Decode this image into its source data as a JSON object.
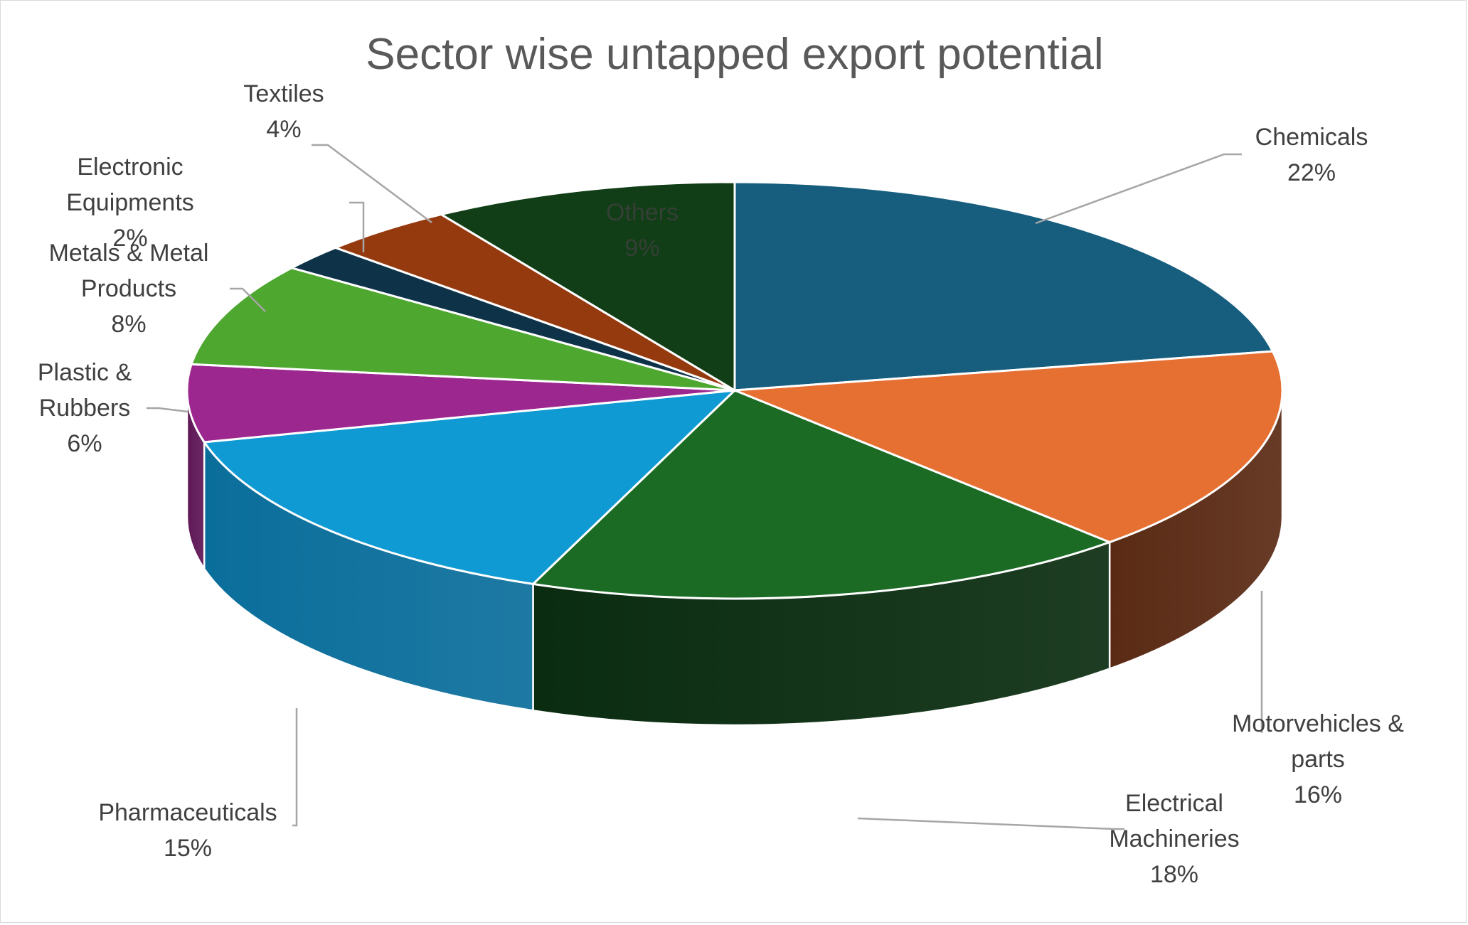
{
  "chart_data": {
    "type": "pie",
    "style": "3d-exploded-none",
    "title": "Sector wise untapped export potential",
    "slices": [
      {
        "name": "Chemicals",
        "label_lines": [
          "Chemicals"
        ],
        "value": 22,
        "pct_label": "22%",
        "color": "#175E7E",
        "side_color": "#0E3E55"
      },
      {
        "name": "Motorvehicles & parts",
        "label_lines": [
          "Motorvehicles &",
          "parts"
        ],
        "value": 16,
        "pct_label": "16%",
        "color": "#E67032",
        "side_color": "#5A2A14"
      },
      {
        "name": "Electrical Machineries",
        "label_lines": [
          "Electrical",
          "Machineries"
        ],
        "value": 18,
        "pct_label": "18%",
        "color": "#1B6B24",
        "side_color": "#0A2C10"
      },
      {
        "name": "Pharmaceuticals",
        "label_lines": [
          "Pharmaceuticals"
        ],
        "value": 15,
        "pct_label": "15%",
        "color": "#0F9AD3",
        "side_color": "#0A6E9B"
      },
      {
        "name": "Plastic & Rubbers",
        "label_lines": [
          "Plastic &",
          "Rubbers"
        ],
        "value": 6,
        "pct_label": "6%",
        "color": "#9C278F",
        "side_color": "#5E1756"
      },
      {
        "name": "Metals & Metal Products",
        "label_lines": [
          "Metals & Metal",
          "Products"
        ],
        "value": 8,
        "pct_label": "8%",
        "color": "#4EA72E",
        "side_color": "#2F6B1B"
      },
      {
        "name": "Electronic Equipments",
        "label_lines": [
          "Electronic",
          "Equipments"
        ],
        "value": 2,
        "pct_label": "2%",
        "color": "#0E3349",
        "side_color": "#081E2B"
      },
      {
        "name": "Textiles",
        "label_lines": [
          "Textiles"
        ],
        "value": 4,
        "pct_label": "4%",
        "color": "#953A0E",
        "side_color": "#5A2308"
      },
      {
        "name": "Others",
        "label_lines": [
          "Others"
        ],
        "value": 9,
        "pct_label": "9%",
        "color": "#113E16",
        "side_color": "#0A260D"
      }
    ],
    "legend": "none",
    "data_labels": "category and percentage"
  }
}
